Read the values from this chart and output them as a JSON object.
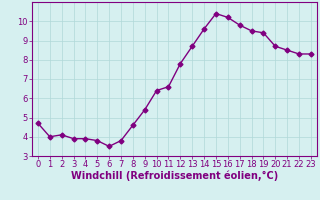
{
  "xlabel": "Windchill (Refroidissement éolien,°C)",
  "x": [
    0,
    1,
    2,
    3,
    4,
    5,
    6,
    7,
    8,
    9,
    10,
    11,
    12,
    13,
    14,
    15,
    16,
    17,
    18,
    19,
    20,
    21,
    22,
    23
  ],
  "y": [
    4.7,
    4.0,
    4.1,
    3.9,
    3.9,
    3.8,
    3.5,
    3.8,
    4.6,
    5.4,
    6.4,
    6.6,
    7.8,
    8.7,
    9.6,
    10.4,
    10.2,
    9.8,
    9.5,
    9.4,
    8.7,
    8.5,
    8.3,
    8.3
  ],
  "line_color": "#800080",
  "marker": "D",
  "marker_size": 2.5,
  "line_width": 1.0,
  "bg_color": "#d6f0f0",
  "grid_color": "#b0d8d8",
  "ylim": [
    3,
    11
  ],
  "xlim": [
    -0.5,
    23.5
  ],
  "yticks": [
    3,
    4,
    5,
    6,
    7,
    8,
    9,
    10
  ],
  "xticks": [
    0,
    1,
    2,
    3,
    4,
    5,
    6,
    7,
    8,
    9,
    10,
    11,
    12,
    13,
    14,
    15,
    16,
    17,
    18,
    19,
    20,
    21,
    22,
    23
  ],
  "tick_color": "#800080",
  "label_color": "#800080",
  "tick_fontsize": 6,
  "xlabel_fontsize": 7
}
